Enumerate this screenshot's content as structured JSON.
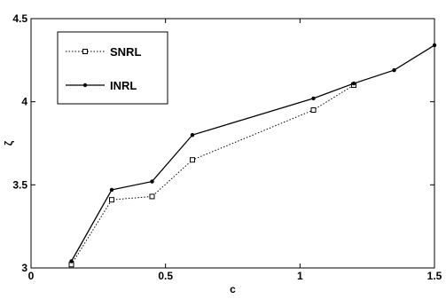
{
  "chart_data": {
    "type": "line",
    "title": "",
    "xlabel": "c",
    "ylabel": "ζ",
    "xlim": [
      0,
      1.5
    ],
    "ylim": [
      3,
      4.5
    ],
    "xticks": [
      0,
      0.5,
      1,
      1.5
    ],
    "xtick_labels": [
      "0",
      "0.5",
      "1",
      "1.5"
    ],
    "yticks": [
      3,
      3.5,
      4,
      4.5
    ],
    "ytick_labels": [
      "3",
      "3.5",
      "4",
      "4.5"
    ],
    "grid": false,
    "legend_position": "top-left",
    "series": [
      {
        "name": "SNRL",
        "style": "dotted",
        "marker": "square",
        "color": "#000000",
        "x": [
          0.15,
          0.3,
          0.45,
          0.6,
          1.05,
          1.2
        ],
        "y": [
          3.02,
          3.41,
          3.43,
          3.65,
          3.95,
          4.1
        ]
      },
      {
        "name": "INRL",
        "style": "solid",
        "marker": "dot",
        "color": "#000000",
        "x": [
          0.15,
          0.3,
          0.45,
          0.6,
          1.05,
          1.2,
          1.35,
          1.5
        ],
        "y": [
          3.04,
          3.47,
          3.52,
          3.8,
          4.02,
          4.11,
          4.19,
          4.34
        ]
      }
    ]
  }
}
